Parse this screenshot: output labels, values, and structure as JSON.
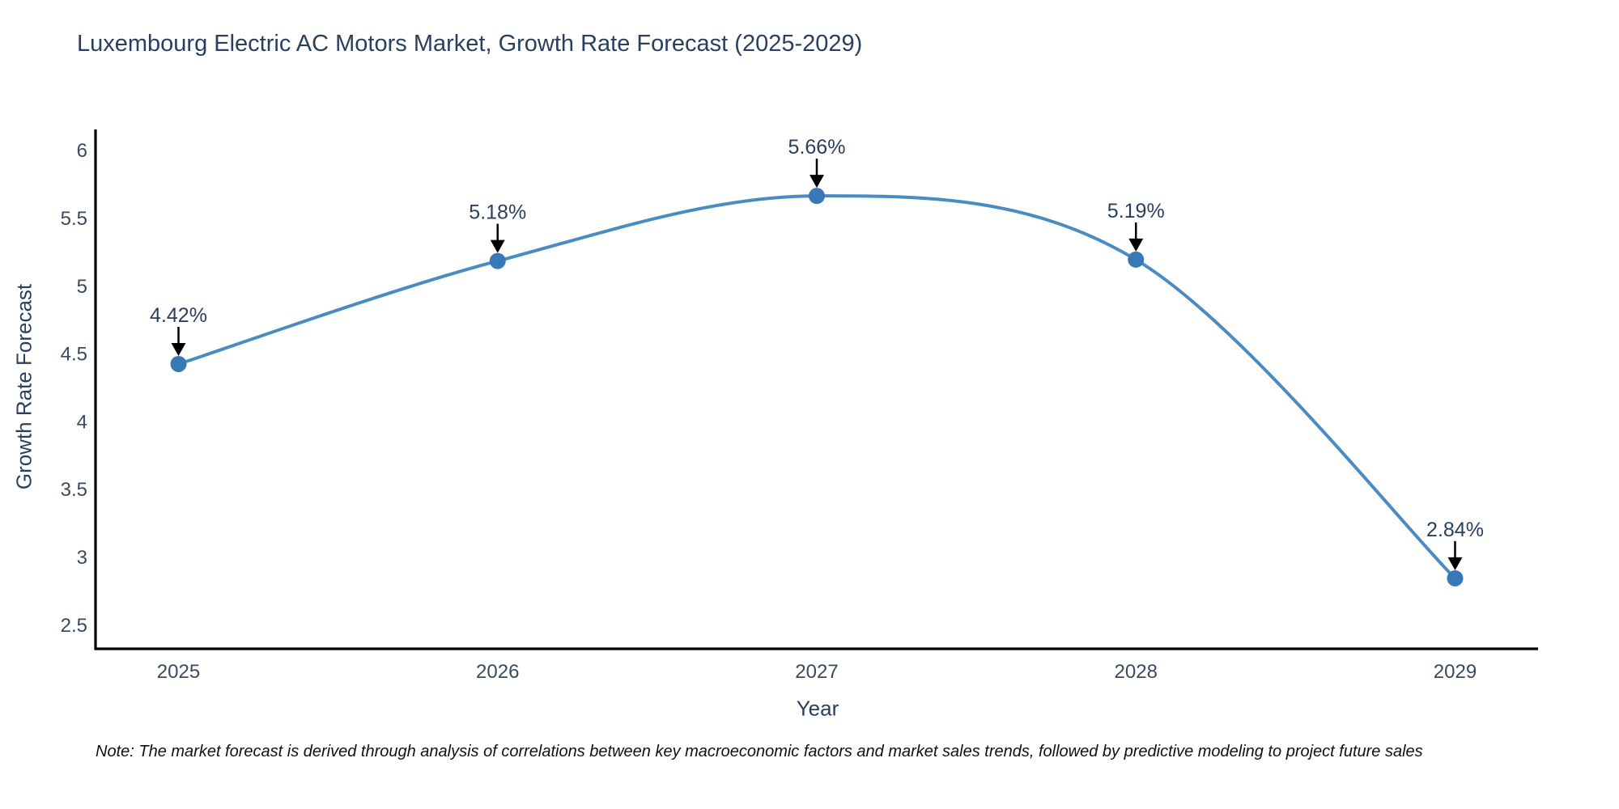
{
  "note": "Note: The market forecast is derived through analysis of correlations between key macroeconomic factors and market sales trends, followed by predictive modeling to project future sales",
  "chart_data": {
    "type": "line",
    "title": "Luxembourg Electric AC Motors Market, Growth Rate Forecast (2025-2029)",
    "xlabel": "Year",
    "ylabel": "Growth Rate Forecast",
    "x": [
      2025,
      2026,
      2027,
      2028,
      2029
    ],
    "series": [
      {
        "name": "Growth Rate Forecast",
        "values": [
          4.42,
          5.18,
          5.66,
          5.19,
          2.84
        ]
      }
    ],
    "point_labels": [
      "4.42%",
      "5.18%",
      "5.66%",
      "5.19%",
      "2.84%"
    ],
    "x_tick_labels": [
      "2025",
      "2026",
      "2027",
      "2028",
      "2029"
    ],
    "y_ticks": [
      2.5,
      3,
      3.5,
      4,
      4.5,
      5,
      5.5,
      6
    ],
    "xlim": [
      2024.74,
      2029.26
    ],
    "ylim": [
      2.32,
      6.15
    ],
    "grid": false,
    "legend_position": "none",
    "line_shape": "spline",
    "colors": {
      "line": "#4a8bc2",
      "marker": "#3878b6",
      "axis_line": "#000000",
      "tick_text": "#3b4a5f",
      "annotation_text": "#2a3f5f",
      "arrow": "#000000",
      "title_text": "#2a3f5f",
      "background": "#ffffff"
    }
  }
}
